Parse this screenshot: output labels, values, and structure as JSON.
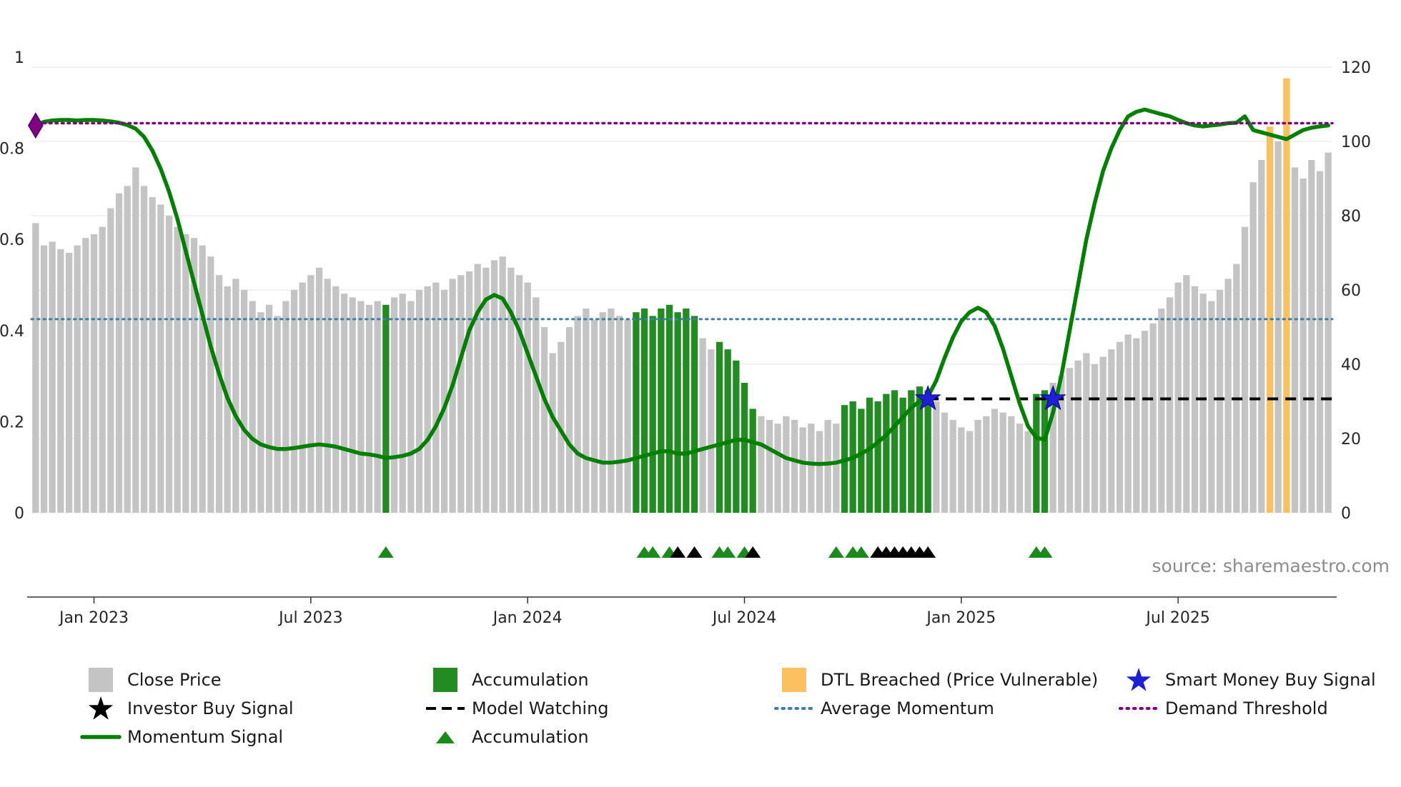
{
  "source_text": "source: sharemaestro.com",
  "colors": {
    "close_bar": "#c4c4c4",
    "accumulation_bar": "#228b22",
    "dtl_bar": "#fdc05f",
    "momentum_line": "#008000",
    "average_momentum": "#3d7eaa",
    "demand_threshold": "#800080",
    "model_watching": "#000000",
    "investor_signal": "#000000",
    "smart_money_star": "#1f1fd4",
    "accumulation_marker": "#1a8a1a",
    "grid_line": "#ebebeb",
    "axis_text": "#262626",
    "source_text": "#8c8c8c"
  },
  "chart_data": {
    "type": "bar+line",
    "title": "",
    "x_ticks": [
      {
        "index": 7,
        "label": "Jan 2023"
      },
      {
        "index": 33,
        "label": "Jul 2023"
      },
      {
        "index": 59,
        "label": "Jan 2024"
      },
      {
        "index": 85,
        "label": "Jul 2024"
      },
      {
        "index": 111,
        "label": "Jan 2025"
      },
      {
        "index": 137,
        "label": "Jul 2025"
      }
    ],
    "left_axis": {
      "range": [
        0,
        1
      ],
      "ticks": [
        {
          "v": 0,
          "label": "0"
        },
        {
          "v": 0.2,
          "label": "0.2"
        },
        {
          "v": 0.4,
          "label": "0.4"
        },
        {
          "v": 0.6,
          "label": "0.6"
        },
        {
          "v": 0.8,
          "label": "0.8"
        },
        {
          "v": 1,
          "label": "1"
        }
      ]
    },
    "right_axis": {
      "range": [
        0,
        120
      ],
      "ticks": [
        0,
        20,
        40,
        60,
        80,
        100,
        120
      ]
    },
    "bars": {
      "series_name": "Close Price",
      "values": [
        78,
        72,
        73,
        71,
        70,
        72,
        74,
        75,
        77,
        82,
        86,
        88,
        93,
        88,
        85,
        83,
        80,
        77,
        75,
        74,
        72,
        69,
        64,
        61,
        63,
        60,
        57,
        54,
        56,
        53,
        57,
        60,
        62,
        64,
        66,
        63,
        61,
        59,
        58,
        57,
        56,
        57,
        56,
        58,
        59,
        57,
        60,
        61,
        62,
        60,
        63,
        64,
        65,
        67,
        66,
        68,
        69,
        66,
        64,
        62,
        58,
        50,
        43,
        46,
        50,
        53,
        55,
        52,
        54,
        55,
        53,
        52,
        54,
        55,
        53,
        55,
        56,
        54,
        55,
        53,
        47,
        44,
        46,
        44,
        41,
        35,
        28,
        26,
        25,
        24,
        26,
        25,
        23,
        24,
        22,
        25,
        24,
        29,
        30,
        28,
        31,
        30,
        32,
        33,
        31,
        33,
        34,
        33,
        30,
        27,
        25,
        23,
        22,
        25,
        26,
        28,
        27,
        26,
        24,
        22,
        32,
        33,
        35,
        37,
        39,
        41,
        43,
        40,
        42,
        44,
        46,
        48,
        47,
        49,
        51,
        55,
        58,
        62,
        64,
        61,
        59,
        57,
        60,
        63,
        67,
        77,
        89,
        95,
        104,
        100,
        117,
        93,
        90,
        95,
        92,
        97
      ],
      "type_runs": [
        [
          42,
          "close"
        ],
        [
          1,
          "accum"
        ],
        [
          29,
          "close"
        ],
        [
          8,
          "accum"
        ],
        [
          2,
          "close"
        ],
        [
          5,
          "accum"
        ],
        [
          10,
          "close"
        ],
        [
          11,
          "accum"
        ],
        [
          12,
          "close"
        ],
        [
          2,
          "accum"
        ],
        [
          26,
          "close"
        ],
        [
          1,
          "dtl"
        ],
        [
          1,
          "close"
        ],
        [
          1,
          "dtl"
        ],
        [
          5,
          "close"
        ]
      ]
    },
    "momentum": [
      0.85,
      0.858,
      0.861,
      0.862,
      0.862,
      0.861,
      0.862,
      0.862,
      0.861,
      0.859,
      0.856,
      0.851,
      0.843,
      0.825,
      0.795,
      0.755,
      0.705,
      0.645,
      0.575,
      0.505,
      0.435,
      0.365,
      0.305,
      0.252,
      0.212,
      0.182,
      0.162,
      0.15,
      0.144,
      0.14,
      0.14,
      0.142,
      0.145,
      0.148,
      0.15,
      0.148,
      0.145,
      0.14,
      0.135,
      0.13,
      0.128,
      0.125,
      0.12,
      0.122,
      0.125,
      0.13,
      0.14,
      0.16,
      0.19,
      0.23,
      0.28,
      0.34,
      0.4,
      0.44,
      0.468,
      0.478,
      0.47,
      0.44,
      0.4,
      0.35,
      0.3,
      0.25,
      0.21,
      0.18,
      0.15,
      0.13,
      0.12,
      0.115,
      0.11,
      0.11,
      0.112,
      0.115,
      0.12,
      0.125,
      0.13,
      0.135,
      0.135,
      0.13,
      0.13,
      0.135,
      0.14,
      0.145,
      0.15,
      0.155,
      0.16,
      0.16,
      0.155,
      0.15,
      0.14,
      0.13,
      0.12,
      0.115,
      0.11,
      0.108,
      0.107,
      0.108,
      0.11,
      0.115,
      0.12,
      0.13,
      0.14,
      0.155,
      0.17,
      0.19,
      0.21,
      0.23,
      0.245,
      0.255,
      0.29,
      0.34,
      0.385,
      0.42,
      0.44,
      0.45,
      0.44,
      0.41,
      0.36,
      0.3,
      0.24,
      0.19,
      0.165,
      0.16,
      0.22,
      0.3,
      0.4,
      0.5,
      0.6,
      0.68,
      0.75,
      0.8,
      0.84,
      0.87,
      0.88,
      0.885,
      0.88,
      0.875,
      0.87,
      0.862,
      0.855,
      0.85,
      0.848,
      0.85,
      0.852,
      0.855,
      0.856,
      0.87,
      0.84,
      0.835,
      0.83,
      0.825,
      0.82,
      0.83,
      0.84,
      0.845,
      0.848,
      0.85
    ],
    "hlines": {
      "demand_threshold": 0.855,
      "average_momentum": 0.425,
      "model_watching": {
        "y": 0.25,
        "start_index": 107
      }
    },
    "markers": {
      "demand_diamond": {
        "index": 0,
        "y": 0.85
      },
      "smart_money_stars": [
        {
          "index": 107,
          "y": 0.25
        },
        {
          "index": 122,
          "y": 0.25
        }
      ],
      "accumulation_triangles": [
        42,
        73,
        74,
        76,
        82,
        83,
        85,
        96,
        98,
        99,
        120,
        121
      ],
      "investor_triangles": [
        77,
        79,
        86,
        101,
        102,
        103,
        104,
        105,
        106,
        107
      ]
    }
  },
  "legend": {
    "close_price": "Close Price",
    "investor_buy_signal": "Investor Buy Signal",
    "momentum_signal": "Momentum Signal",
    "accumulation_bar": "Accumulation",
    "model_watching": "Model Watching",
    "accumulation_marker": "Accumulation",
    "dtl_breached": "DTL Breached (Price Vulnerable)",
    "average_momentum": "Average Momentum",
    "smart_money_buy_signal": "Smart Money Buy Signal",
    "demand_threshold": "Demand Threshold"
  }
}
